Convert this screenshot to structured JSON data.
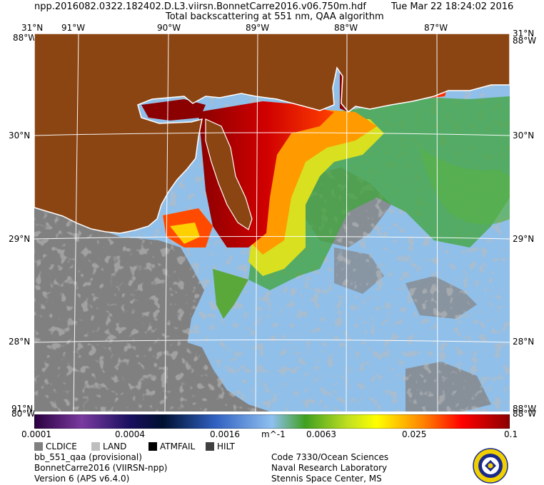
{
  "header": {
    "filename": "npp.2016082.0322.182402.D.L3.viirsn.BonnetCarre2016.v06.750m.hdf",
    "title": "Total backscattering at 551 nm, QAA algorithm",
    "datetime": "Tue Mar 22 18:24:02 2016"
  },
  "map": {
    "lon_labels": [
      "91°W",
      "90°W",
      "89°W",
      "88°W",
      "87°W"
    ],
    "lat_labels": [
      "30°N",
      "29°N",
      "28°N"
    ],
    "corner_labels": {
      "top_left_lat": "31°N",
      "top_left_lon": "88°W",
      "top_right_lat": "31°N",
      "top_right_lon": "88°W",
      "bottom_left_lat": "91°N",
      "bottom_left_lon": "80°W",
      "bottom_right_lat": "88°W",
      "bottom_right_lon": "88°W"
    },
    "colors": {
      "land": "#8b4513",
      "ocean_low": "#8fbfe8",
      "cloud": "#808080",
      "coast": "#ffffff"
    }
  },
  "colorbar": {
    "ticks": [
      "0.0001",
      "0.0004",
      "0.0016",
      "0.0063",
      "0.025",
      "0.1"
    ],
    "unit": "m^-1",
    "colors": [
      "#2a0040",
      "#7a3aa0",
      "#1a1060",
      "#001030",
      "#3060c0",
      "#8fc0f0",
      "#40a020",
      "#c0e020",
      "#ffff00",
      "#ff8000",
      "#ff0000",
      "#8b0000"
    ]
  },
  "legend": {
    "items": [
      {
        "label": "CLDICE",
        "color": "#808080"
      },
      {
        "label": "LAND",
        "color": "#bebebe"
      },
      {
        "label": "ATMFAIL",
        "color": "#000000"
      },
      {
        "label": "HILT",
        "color": "#404040"
      }
    ]
  },
  "footer": {
    "left": [
      "bb_551_qaa (provisional)",
      "BonnetCarre2016 (VIIRSN-npp)",
      "Version 6 (APS v6.4.0)"
    ],
    "right": [
      "Code 7330/Ocean Sciences",
      "Naval Research Laboratory",
      "Stennis Space Center, MS"
    ]
  }
}
